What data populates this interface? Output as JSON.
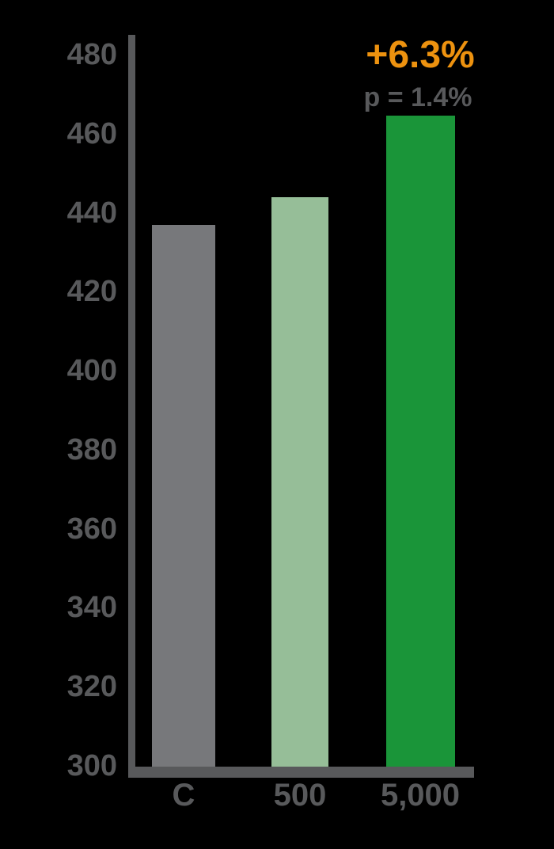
{
  "chart_data": {
    "type": "bar",
    "title": "",
    "xlabel": "",
    "ylabel": "",
    "categories": [
      "C",
      "500",
      "5,000"
    ],
    "values": [
      437,
      444,
      464.5
    ],
    "ylim": [
      300,
      480
    ],
    "yticks": [
      480,
      460,
      440,
      420,
      400,
      380,
      360,
      340,
      320,
      300
    ],
    "grid": false,
    "legend": "none",
    "bar_colors": [
      "#77787B",
      "#96BE98",
      "#1A9539"
    ],
    "annotations": {
      "change_pct": "+6.3%",
      "p_value": "p = 1.4%"
    }
  },
  "colors": {
    "background": "#000000",
    "axis": "#58595B",
    "tick_text": "#58595B",
    "annotation_orange": "#ED920F",
    "annotation_gray": "#58595B",
    "bar_control_gray": "#77787B",
    "bar_light_green": "#96BE98",
    "bar_dark_green": "#1A9539"
  }
}
